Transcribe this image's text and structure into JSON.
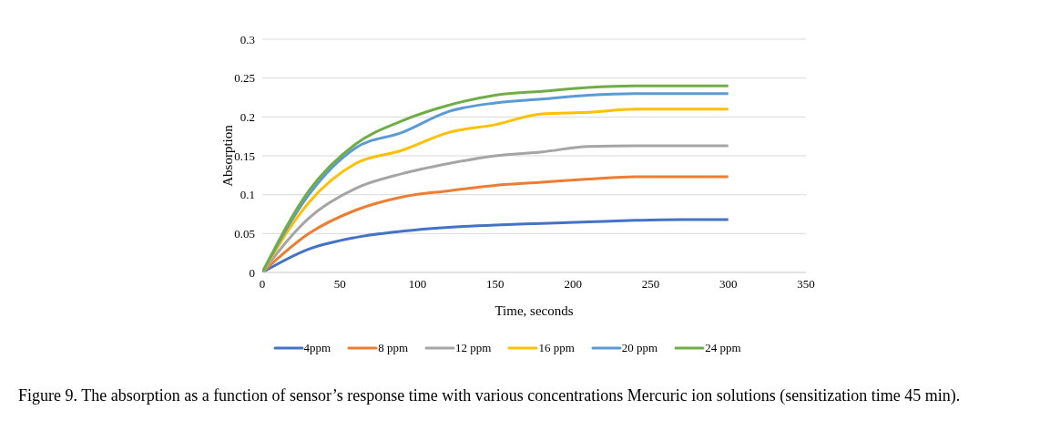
{
  "chart_data": {
    "type": "line",
    "xlabel": "Time, seconds",
    "ylabel": "Absorption",
    "x": [
      0,
      30,
      60,
      90,
      120,
      150,
      180,
      210,
      240,
      270,
      300
    ],
    "series": [
      {
        "name": "4ppm",
        "color": "#4472c4",
        "values": [
          0,
          0.03,
          0.045,
          0.053,
          0.058,
          0.061,
          0.063,
          0.065,
          0.067,
          0.068,
          0.068
        ]
      },
      {
        "name": "8 ppm",
        "color": "#ed7d31",
        "values": [
          0,
          0.05,
          0.08,
          0.097,
          0.105,
          0.112,
          0.116,
          0.12,
          0.123,
          0.123,
          0.123
        ]
      },
      {
        "name": "12 ppm",
        "color": "#a5a5a5",
        "values": [
          0,
          0.07,
          0.108,
          0.127,
          0.14,
          0.15,
          0.155,
          0.162,
          0.163,
          0.163,
          0.163
        ]
      },
      {
        "name": "16 ppm",
        "color": "#ffc000",
        "values": [
          0,
          0.09,
          0.14,
          0.157,
          0.18,
          0.19,
          0.204,
          0.206,
          0.21,
          0.21,
          0.21
        ]
      },
      {
        "name": "20 ppm",
        "color": "#5b9bd5",
        "values": [
          0,
          0.1,
          0.16,
          0.18,
          0.207,
          0.218,
          0.223,
          0.228,
          0.23,
          0.23,
          0.23
        ]
      },
      {
        "name": "24 ppm",
        "color": "#70ad47",
        "values": [
          0,
          0.105,
          0.165,
          0.195,
          0.215,
          0.228,
          0.233,
          0.238,
          0.24,
          0.24,
          0.24
        ]
      }
    ],
    "xlim": [
      0,
      350
    ],
    "xticks": [
      0,
      50,
      100,
      150,
      200,
      250,
      300,
      350
    ],
    "ylim": [
      0,
      0.3
    ],
    "yticks": [
      0,
      0.05,
      0.1,
      0.15,
      0.2,
      0.25,
      0.3
    ],
    "grid": "y",
    "legend": "bottom",
    "marker": "none",
    "line_style": "solid",
    "annotations": [
      "Figure 9. The absorption as a function of sensor’s response time with various concentrations Mercuric ion solutions (sensitization time 45 min)."
    ]
  }
}
